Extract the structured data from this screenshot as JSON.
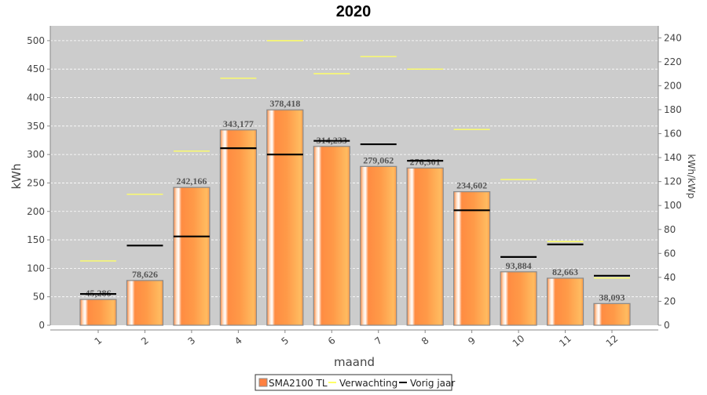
{
  "chart_data": {
    "type": "bar",
    "title": "2020",
    "xlabel": "maand",
    "ylabel": "kWh",
    "y2label": "kWh/kWp",
    "ylim": [
      0,
      526
    ],
    "y2lim": [
      0,
      250
    ],
    "yticks": [
      0,
      50,
      100,
      150,
      200,
      250,
      300,
      350,
      400,
      450,
      500
    ],
    "y2ticks": [
      0,
      20,
      40,
      60,
      80,
      100,
      120,
      140,
      160,
      180,
      200,
      220,
      240
    ],
    "categories": [
      "1",
      "2",
      "3",
      "4",
      "5",
      "6",
      "7",
      "8",
      "9",
      "10",
      "11",
      "12"
    ],
    "series": [
      {
        "name": "SMA2100 TL",
        "kind": "bar",
        "color": "#ff8c42",
        "values": [
          45.286,
          78.626,
          242.166,
          343.177,
          378.418,
          314.233,
          279.062,
          276.301,
          234.602,
          93.884,
          82.663,
          38.093
        ],
        "labels": [
          "45,286",
          "78,626",
          "242,166",
          "343,177",
          "378,418",
          "314,233",
          "279,062",
          "276,301",
          "234,602",
          "93,884",
          "82,663",
          "38,093"
        ]
      },
      {
        "name": "Verwachting",
        "kind": "marker",
        "color": "#ffff66",
        "values": [
          113,
          230,
          306,
          434,
          500,
          442,
          472,
          450,
          344,
          256,
          147,
          83
        ]
      },
      {
        "name": "Vorig jaar",
        "kind": "marker",
        "color": "#000000",
        "values": [
          55,
          140,
          156,
          311,
          300,
          324,
          318,
          289,
          202,
          120,
          142,
          87
        ]
      }
    ],
    "grid": true,
    "legend": "bottom-center"
  }
}
